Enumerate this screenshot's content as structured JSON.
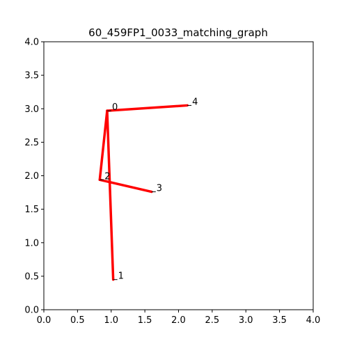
{
  "chart_data": {
    "type": "line",
    "title": "60_459FP1_0033_matching_graph",
    "xlabel": "",
    "ylabel": "",
    "xlim": [
      0,
      4
    ],
    "ylim": [
      0,
      4
    ],
    "xticks": [
      "0.0",
      "0.5",
      "1.0",
      "1.5",
      "2.0",
      "2.5",
      "3.0",
      "3.5",
      "4.0"
    ],
    "yticks": [
      "0.0",
      "0.5",
      "1.0",
      "1.5",
      "2.0",
      "2.5",
      "3.0",
      "3.5",
      "4.0"
    ],
    "grid": false,
    "edge_color": "#ff0000",
    "nodes": [
      {
        "id": "0",
        "x": 0.94,
        "y": 2.97
      },
      {
        "id": "1",
        "x": 1.03,
        "y": 0.45
      },
      {
        "id": "2",
        "x": 0.83,
        "y": 1.94
      },
      {
        "id": "3",
        "x": 1.6,
        "y": 1.76
      },
      {
        "id": "4",
        "x": 2.13,
        "y": 3.05
      }
    ],
    "edges": [
      [
        "0",
        "4"
      ],
      [
        "0",
        "2"
      ],
      [
        "0",
        "1"
      ],
      [
        "2",
        "3"
      ]
    ]
  }
}
